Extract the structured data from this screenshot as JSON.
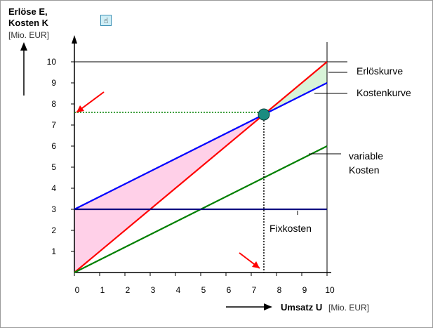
{
  "chart_data": {
    "type": "line",
    "ylabel_line1": "Erlöse E,",
    "ylabel_line2": "Kosten K",
    "ylabel_unit": "[Mio. EUR]",
    "xlabel": "Umsatz U",
    "xlabel_unit": "[Mio. EUR]",
    "xlim": [
      0,
      10
    ],
    "ylim": [
      0,
      10
    ],
    "xticks": [
      "0",
      "1",
      "2",
      "3",
      "4",
      "5",
      "6",
      "7",
      "8",
      "9",
      "10"
    ],
    "yticks": [
      "1",
      "2",
      "3",
      "4",
      "5",
      "6",
      "7",
      "8",
      "9",
      "10"
    ],
    "series": [
      {
        "name": "Erlöskurve",
        "color": "#ff0000",
        "x": [
          0,
          10
        ],
        "y": [
          0,
          10
        ]
      },
      {
        "name": "Kostenkurve",
        "color": "#0000ff",
        "x": [
          0,
          10
        ],
        "y": [
          3,
          9
        ]
      },
      {
        "name": "variable Kosten",
        "color": "#008000",
        "x": [
          0,
          10
        ],
        "y": [
          0,
          6
        ]
      },
      {
        "name": "Fixkosten",
        "color": "#000080",
        "x": [
          0,
          10
        ],
        "y": [
          3,
          3
        ]
      }
    ],
    "break_even": {
      "x": 7.5,
      "y": 7.5,
      "color": "#1a8c80"
    },
    "loss_area_color": "#ffd0e8",
    "profit_area_color": "#d8f4d8",
    "labels": {
      "revenue": "Erlöskurve",
      "cost": "Kostenkurve",
      "variable_line1": "variable",
      "variable_line2": "Kosten",
      "fixed": "Fixkosten"
    }
  },
  "toolbar": {
    "hand_icon": "hand-icon",
    "hand_glyph": "☝"
  }
}
